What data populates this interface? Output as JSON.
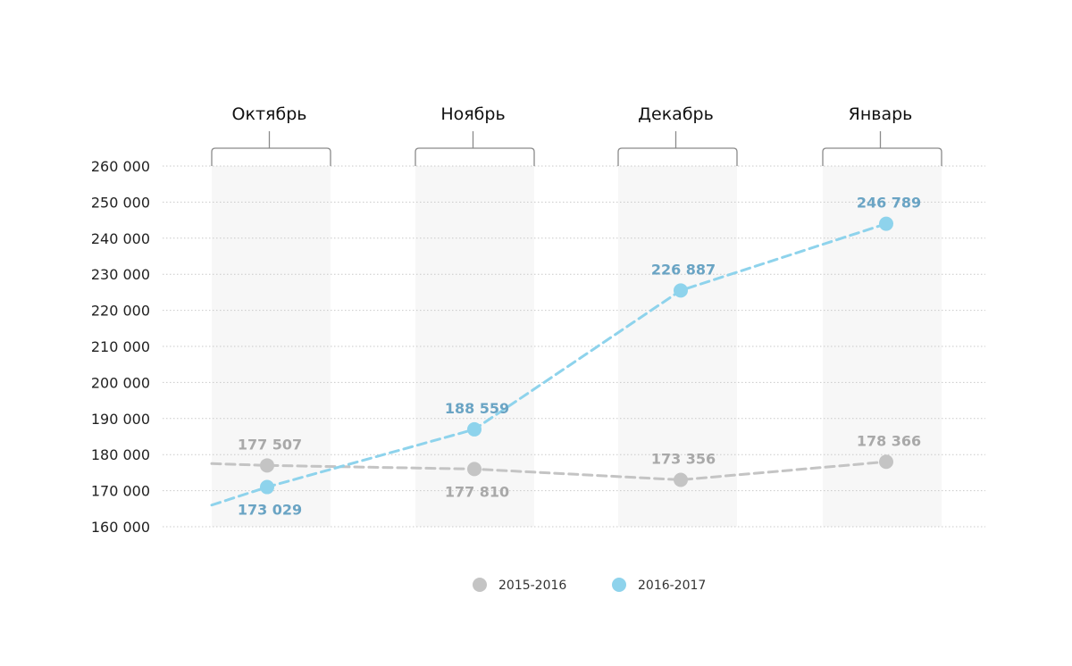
{
  "chart_data": {
    "type": "line",
    "categories": [
      "Октябрь",
      "Ноябрь",
      "Декабрь",
      "Январь"
    ],
    "y_ticks": [
      "160 000",
      "170 000",
      "180 000",
      "190 000",
      "200 000",
      "210 000",
      "220 000",
      "230 000",
      "240 000",
      "250 000",
      "260 000"
    ],
    "ylim": [
      160000,
      260000
    ],
    "grid": true,
    "legend_position": "bottom-center",
    "series": [
      {
        "name": "2015-2016",
        "color": "#c4c4c4",
        "label_color": "#a9a9a9",
        "values": [
          177000,
          176000,
          173000,
          178000
        ],
        "labels": [
          "177 507",
          "177 810",
          "173 356",
          "178 366"
        ],
        "label_pos": [
          "above",
          "below",
          "above",
          "above"
        ],
        "line_start": 177500
      },
      {
        "name": "2016-2017",
        "color": "#8ed3ec",
        "label_color": "#6aa4c4",
        "values": [
          171000,
          187000,
          225500,
          244000
        ],
        "labels": [
          "173 029",
          "188 559",
          "226 887",
          "246 789"
        ],
        "label_pos": [
          "below",
          "above",
          "above",
          "above"
        ],
        "line_start": 166000
      }
    ]
  }
}
